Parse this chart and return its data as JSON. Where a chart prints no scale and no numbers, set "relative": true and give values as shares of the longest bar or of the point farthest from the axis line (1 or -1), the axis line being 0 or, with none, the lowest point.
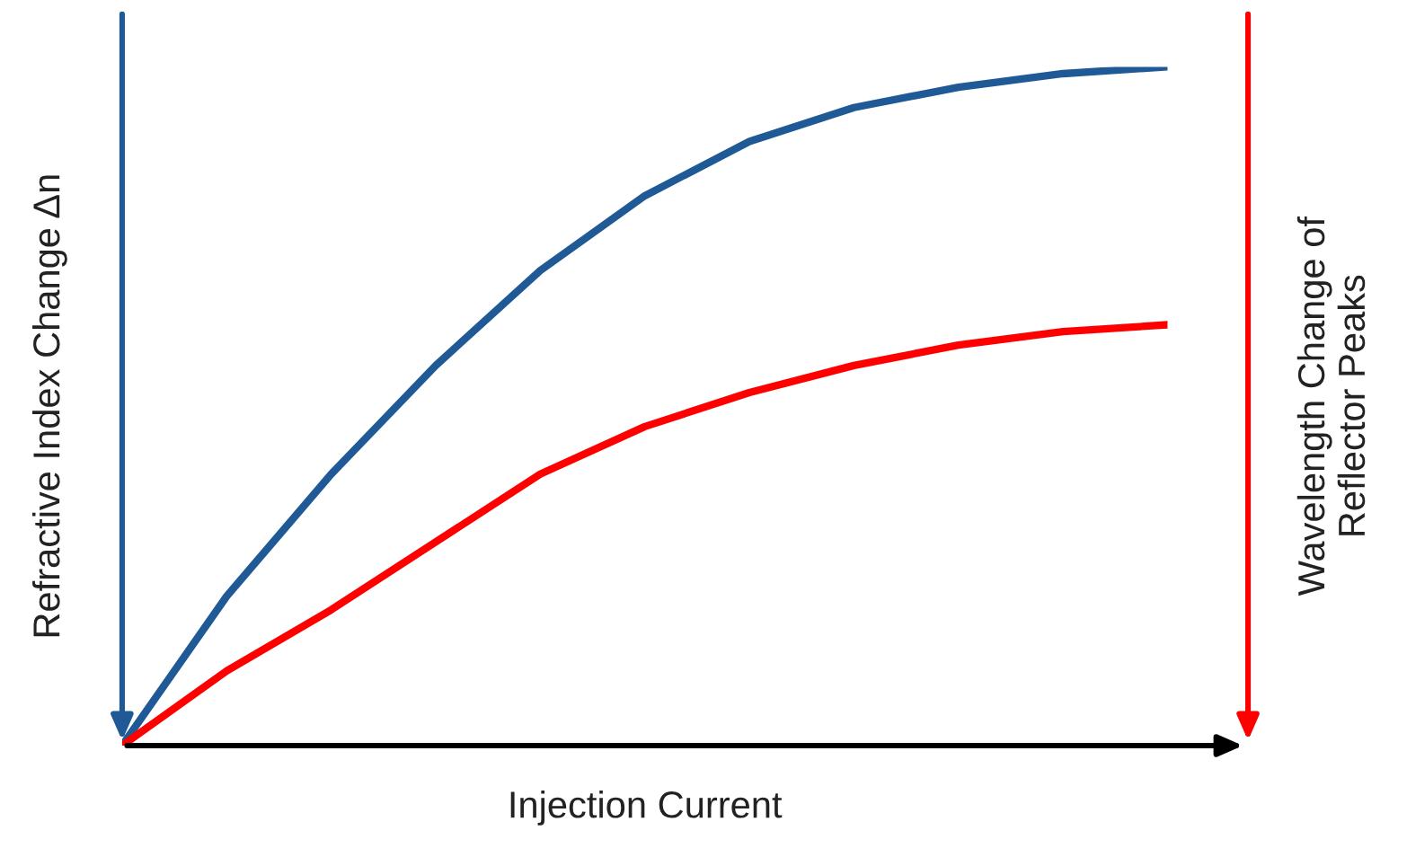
{
  "chart_data": {
    "type": "line",
    "relative": true,
    "xlabel": "Injection Current",
    "ylabel": "Refractive Index Change Δn",
    "y2label": "Wavelength Change of\nReflector Peaks",
    "categories": [
      null,
      null,
      null,
      null,
      null,
      null,
      null,
      null,
      null,
      null,
      null
    ],
    "series": [
      {
        "color": "#1f5a96",
        "values": [
          0,
          0.22,
          0.4,
          0.56,
          0.7,
          0.81,
          0.89,
          0.94,
          0.97,
          0.99,
          1
        ]
      },
      {
        "color": "#ff0000",
        "values": [
          0,
          0.11,
          0.2,
          0.3,
          0.4,
          0.47,
          0.52,
          0.56,
          0.59,
          0.61,
          0.62
        ]
      }
    ],
    "marker": "none",
    "line_style": "solid"
  }
}
